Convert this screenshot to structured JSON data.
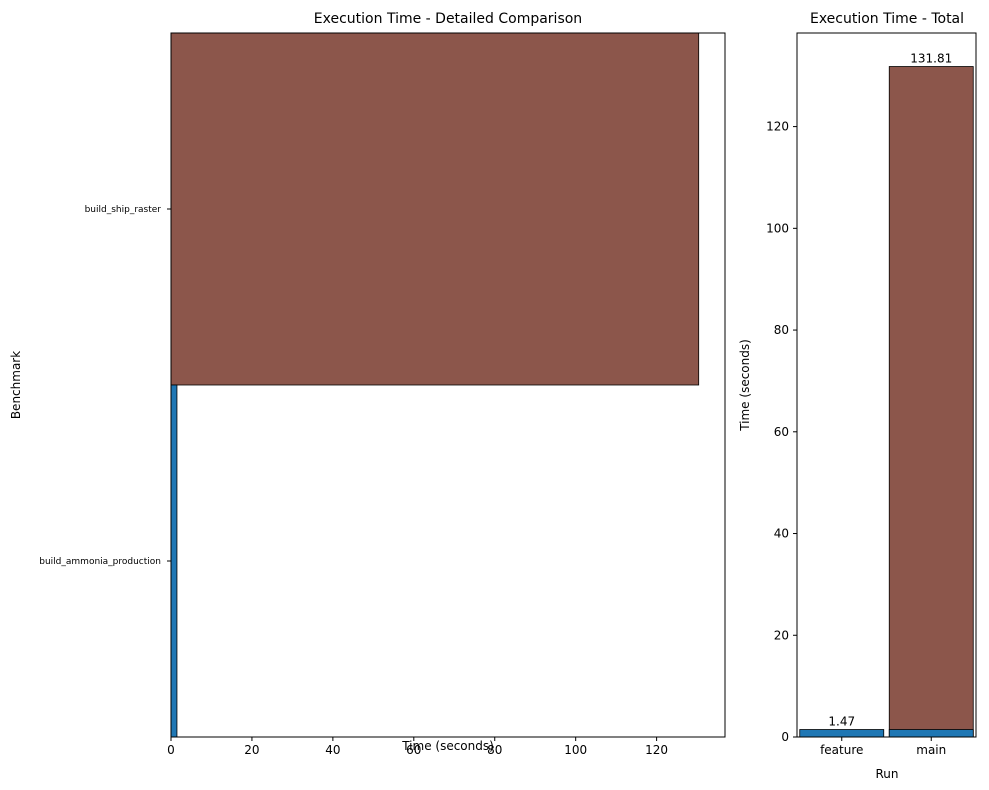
{
  "colors": {
    "main": "#8c564b",
    "feature": "#1f77b4",
    "edge": "#000000"
  },
  "chart_data": [
    {
      "type": "bar",
      "orientation": "horizontal",
      "title": "Execution Time - Detailed Comparison",
      "xlabel": "Time (seconds)",
      "ylabel": "Benchmark",
      "categories": [
        "build_ship_raster",
        "build_ammonia_production"
      ],
      "series": [
        {
          "run": "main",
          "values": [
            130.4,
            null
          ]
        },
        {
          "run": "feature",
          "values": [
            null,
            1.47
          ]
        }
      ],
      "xlim": [
        0,
        136.9
      ],
      "xticks": [
        0,
        20,
        40,
        60,
        80,
        100,
        120
      ],
      "grid": false,
      "legend": "none"
    },
    {
      "type": "bar",
      "title": "Execution Time - Total",
      "xlabel": "Run",
      "ylabel": "Time (seconds)",
      "categories": [
        "feature",
        "main"
      ],
      "values": [
        1.47,
        131.81
      ],
      "value_labels": [
        "1.47",
        "131.81"
      ],
      "overlay_value": 1.47,
      "ylim": [
        0,
        138.4
      ],
      "yticks": [
        0,
        20,
        40,
        60,
        80,
        100,
        120
      ],
      "grid": false,
      "legend": "none"
    }
  ]
}
